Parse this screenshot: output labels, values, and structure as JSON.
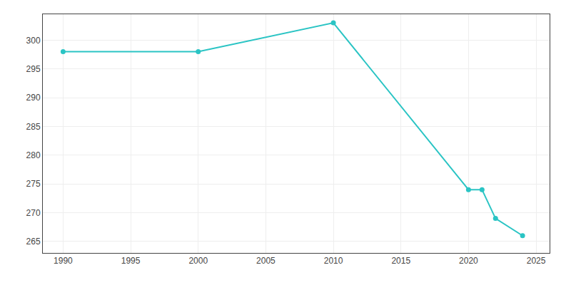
{
  "chart_data": {
    "type": "line",
    "x": [
      1990,
      2000,
      2010,
      2020,
      2021,
      2022,
      2024
    ],
    "values": [
      298,
      298,
      303,
      274,
      274,
      269,
      266
    ],
    "color": "#2ac4c4",
    "marker": "circle",
    "xlim": [
      1988.5,
      2026
    ],
    "ylim": [
      263,
      304.5
    ],
    "xticks": [
      1990,
      1995,
      2000,
      2005,
      2010,
      2015,
      2020,
      2025
    ],
    "yticks": [
      265,
      270,
      275,
      280,
      285,
      290,
      295,
      300
    ],
    "grid": true
  }
}
